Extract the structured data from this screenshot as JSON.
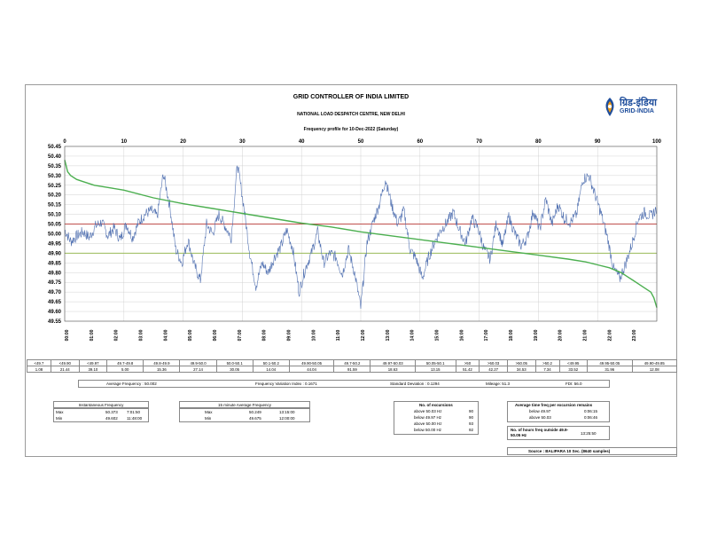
{
  "header": {
    "title": "GRID CONTROLLER OF INDIA LIMITED",
    "subtitle": "NATIONAL LOAD DESPATCH CENTRE, NEW DELHI",
    "chart_title": "Frequency profile for 10-Dec-2022 (Saturday)",
    "logo_hindi": "ग्रिड-इंडिया",
    "logo_english": "GRID-INDIA"
  },
  "chart_data": {
    "type": "line",
    "title": "Frequency profile for 10-Dec-2022 (Saturday)",
    "y_ticks": [
      "50.45",
      "50.40",
      "50.35",
      "50.30",
      "50.25",
      "50.20",
      "50.15",
      "50.10",
      "50.05",
      "50.00",
      "49.95",
      "49.90",
      "49.85",
      "49.80",
      "49.75",
      "49.70",
      "49.65",
      "49.60",
      "49.55"
    ],
    "ylim": [
      49.55,
      50.45
    ],
    "top_x_ticks": [
      "0",
      "10",
      "20",
      "30",
      "40",
      "50",
      "60",
      "70",
      "80",
      "90",
      "100"
    ],
    "top_xlim": [
      0,
      100
    ],
    "bottom_x_ticks": [
      "00:00",
      "01:00",
      "02:00",
      "03:00",
      "04:00",
      "05:00",
      "06:00",
      "07:00",
      "08:00",
      "09:00",
      "10:00",
      "11:00",
      "12:00",
      "13:00",
      "14:00",
      "15:00",
      "16:00",
      "17:00",
      "18:00",
      "19:00",
      "20:00",
      "21:00",
      "22:00",
      "23:00"
    ],
    "reference_lines": [
      {
        "value": 50.05,
        "color": "#c0504d"
      },
      {
        "value": 49.9,
        "color": "#9bbb59"
      }
    ],
    "series": [
      {
        "color": "#4f6fb0",
        "x_hours": [
          0,
          0.25,
          0.5,
          0.75,
          1,
          1.25,
          1.5,
          1.75,
          2,
          2.25,
          2.5,
          2.75,
          3,
          3.25,
          3.5,
          3.75,
          4,
          4.25,
          4.5,
          4.75,
          5,
          5.25,
          5.5,
          5.75,
          6,
          6.25,
          6.5,
          6.75,
          7,
          7.25,
          7.5,
          7.75,
          8,
          8.25,
          8.5,
          8.75,
          9,
          9.25,
          9.5,
          9.75,
          10,
          10.25,
          10.5,
          10.75,
          11,
          11.25,
          11.5,
          11.75,
          12,
          12.25,
          12.5,
          12.75,
          13,
          13.25,
          13.5,
          13.75,
          14,
          14.25,
          14.5,
          14.75,
          15,
          15.25,
          15.5,
          15.75,
          16,
          16.25,
          16.5,
          16.75,
          17,
          17.25,
          17.5,
          17.75,
          18,
          18.25,
          18.5,
          18.75,
          19,
          19.25,
          19.5,
          19.75,
          20,
          20.25,
          20.5,
          20.75,
          21,
          21.25,
          21.5,
          21.75,
          22,
          22.25,
          22.5,
          22.75,
          23,
          23.25,
          23.5,
          23.75,
          24
        ],
        "values": [
          50.02,
          49.96,
          49.99,
          50.01,
          49.98,
          50.04,
          50.06,
          49.99,
          50.03,
          49.97,
          50.05,
          49.98,
          50.06,
          50.1,
          50.12,
          50.09,
          50.31,
          50.15,
          49.92,
          49.85,
          49.97,
          49.84,
          49.76,
          50.05,
          50.0,
          50.1,
          50.04,
          49.98,
          50.36,
          50.15,
          49.9,
          49.73,
          49.85,
          49.8,
          49.88,
          49.93,
          50.02,
          49.92,
          49.7,
          49.82,
          49.9,
          50.01,
          49.85,
          49.9,
          49.88,
          49.79,
          49.92,
          49.8,
          49.62,
          49.95,
          50.06,
          50.15,
          50.28,
          50.15,
          50.05,
          50.12,
          49.92,
          49.87,
          49.77,
          49.88,
          49.96,
          50.02,
          50.06,
          50.11,
          50.02,
          49.95,
          50.08,
          50.03,
          49.92,
          49.87,
          50.06,
          49.94,
          50.09,
          50.0,
          49.94,
          49.98,
          50.12,
          50.02,
          50.18,
          50.05,
          50.15,
          50.08,
          50.06,
          50.1,
          50.28,
          50.3,
          50.2,
          50.1,
          49.98,
          49.82,
          49.77,
          49.85,
          49.95,
          50.08,
          50.11,
          50.09,
          50.13
        ]
      },
      {
        "color": "#4caf50",
        "x_percent": [
          0,
          0.5,
          1,
          2,
          3,
          5,
          8,
          10,
          15,
          20,
          25,
          30,
          35,
          40,
          45,
          50,
          55,
          60,
          65,
          70,
          75,
          80,
          85,
          88,
          90,
          92,
          94,
          95,
          96,
          97,
          98,
          99,
          99.5,
          100
        ],
        "values": [
          50.38,
          50.32,
          50.3,
          50.28,
          50.27,
          50.25,
          50.235,
          50.225,
          50.185,
          50.155,
          50.13,
          50.105,
          50.08,
          50.055,
          50.035,
          50.01,
          49.99,
          49.97,
          49.95,
          49.93,
          49.91,
          49.89,
          49.87,
          49.855,
          49.84,
          49.825,
          49.8,
          49.78,
          49.76,
          49.74,
          49.72,
          49.7,
          49.67,
          49.62
        ]
      }
    ]
  },
  "dist_table": {
    "headers": [
      "<49.7",
      "<49.90",
      "<49.97",
      "49.7-49.8",
      "49.8-49.9",
      "49.9-50.0",
      "50.0-50.1",
      "50.1-50.2",
      "49.90-50.05",
      "49.7-50.2",
      "49.97-50.03",
      "50.05-50.1",
      ">50",
      ">50.03",
      ">50.05",
      ">50.2",
      "<49.95",
      "49.95-50.05",
      "49.90-49.85"
    ],
    "values": [
      "1.08",
      "21.44",
      "39.10",
      "5.00",
      "15.36",
      "27.14",
      "30.05",
      "14.04",
      "44.04",
      "91.59",
      "18.63",
      "13.15",
      "51.42",
      "42.27",
      "34.53",
      "7.34",
      "33.52",
      "31.96",
      "12.08"
    ]
  },
  "summary": {
    "avg_freq": "Average Frequency :  50.002",
    "fvi": "Frequency Variation Index :  0.1671",
    "std_dev": "Standard Deviation :  0.1294",
    "mileage": "Mileage:  51.3",
    "fdi": "FDI:  56.0"
  },
  "instantaneous": {
    "title": "Instantaneous Frequency",
    "rows": [
      {
        "label": "Max",
        "value": "50.373",
        "time": "7:01:50"
      },
      {
        "label": "Min",
        "value": "49.602",
        "time": "11:48:00"
      }
    ]
  },
  "fifteen_min": {
    "title": "15 minute Average Frequency",
    "rows": [
      {
        "label": "Max",
        "value": "50.249",
        "time": "13:15:00"
      },
      {
        "label": "Min",
        "value": "49.675",
        "time": "12:00:00"
      }
    ]
  },
  "excursions": {
    "title": "No. of excursions",
    "rows": [
      {
        "label": "above 50.03 Hz",
        "value": "90"
      },
      {
        "label": "below 49.97 Hz",
        "value": "90"
      },
      {
        "label": "above 50.00 Hz",
        "value": "93"
      },
      {
        "label": "below 50.00 Hz",
        "value": "92"
      }
    ]
  },
  "avg_time": {
    "title": "Average time freq per excursion remains",
    "rows": [
      {
        "label": "below 49.97",
        "value": "0:06:15"
      },
      {
        "label": "above 50.03",
        "value": "0:06:46"
      }
    ],
    "outside_label": "No. of hours freq outside 49.9-50.05 Hz",
    "outside_value": "13:25:50"
  },
  "source": "Source :  BALIPARA 10 Sec. (8640 samples)"
}
